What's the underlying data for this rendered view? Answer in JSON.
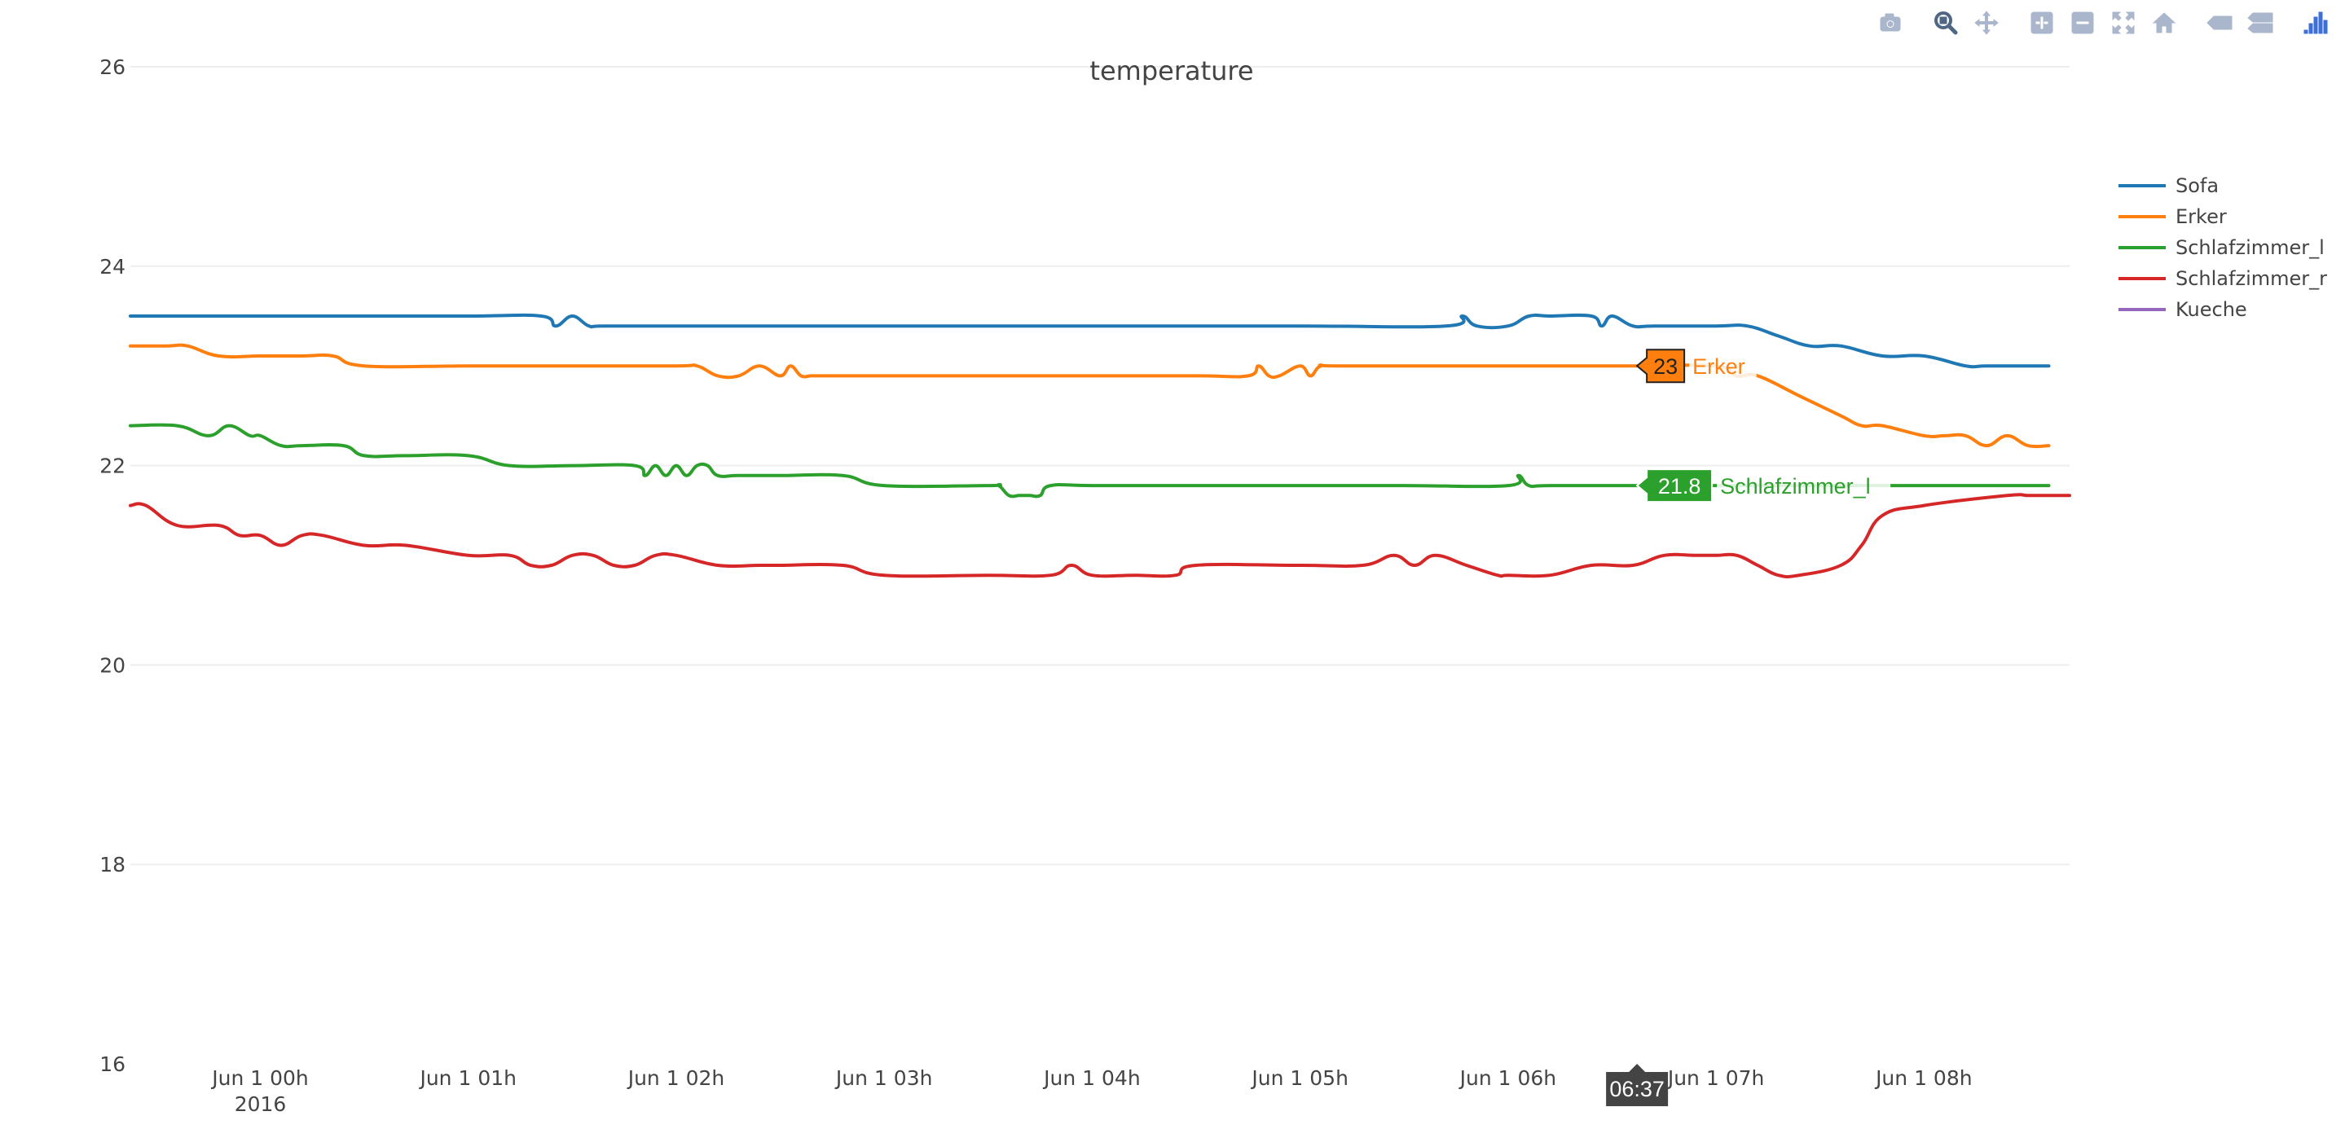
{
  "toolbar": {
    "buttons": [
      {
        "name": "camera-icon",
        "label": "Download plot as a png"
      },
      {
        "name": "zoom-icon",
        "label": "Zoom"
      },
      {
        "name": "pan-icon",
        "label": "Pan"
      },
      {
        "name": "zoom-in-icon",
        "label": "Zoom in"
      },
      {
        "name": "zoom-out-icon",
        "label": "Zoom out"
      },
      {
        "name": "autoscale-icon",
        "label": "Autoscale"
      },
      {
        "name": "home-icon",
        "label": "Reset axes"
      },
      {
        "name": "hover-closest-icon",
        "label": "Show closest data on hover"
      },
      {
        "name": "hover-compare-icon",
        "label": "Compare data on hover"
      },
      {
        "name": "plotly-logo-icon",
        "label": "Produced with Plotly"
      }
    ],
    "icon_color": "#a9b6cc",
    "icon_active_color": "#506784"
  },
  "chart_data": {
    "type": "line",
    "title": "temperature",
    "xlabel": "",
    "ylabel": "",
    "x_range_hours": [
      -0.625,
      8.7
    ],
    "ylim": [
      16,
      26
    ],
    "y_ticks": [
      16,
      18,
      20,
      22,
      24,
      26
    ],
    "x_ticks": [
      {
        "hour": 0,
        "label": "Jun 1 00h",
        "sublabel": "2016"
      },
      {
        "hour": 1,
        "label": "Jun 1 01h",
        "sublabel": ""
      },
      {
        "hour": 2,
        "label": "Jun 1 02h",
        "sublabel": ""
      },
      {
        "hour": 3,
        "label": "Jun 1 03h",
        "sublabel": ""
      },
      {
        "hour": 4,
        "label": "Jun 1 04h",
        "sublabel": ""
      },
      {
        "hour": 5,
        "label": "Jun 1 05h",
        "sublabel": ""
      },
      {
        "hour": 6,
        "label": "Jun 1 06h",
        "sublabel": ""
      },
      {
        "hour": 7,
        "label": "Jun 1 07h",
        "sublabel": ""
      },
      {
        "hour": 8,
        "label": "Jun 1 08h",
        "sublabel": ""
      }
    ],
    "grid": true,
    "legend_position": "top-right",
    "series": [
      {
        "name": "Sofa",
        "color": "#1f77b4",
        "x": [
          -0.625,
          0.5,
          1,
          1.35,
          1.42,
          1.5,
          1.58,
          1.65,
          2,
          3,
          4,
          5,
          5.7,
          5.78,
          5.85,
          6,
          6.1,
          6.2,
          6.4,
          6.45,
          6.5,
          6.6,
          6.7,
          7,
          7.15,
          7.3,
          7.45,
          7.6,
          7.8,
          8,
          8.2,
          8.3,
          8.5,
          8.6
        ],
        "y": [
          23.5,
          23.5,
          23.5,
          23.5,
          23.4,
          23.5,
          23.4,
          23.4,
          23.4,
          23.4,
          23.4,
          23.4,
          23.4,
          23.5,
          23.4,
          23.4,
          23.5,
          23.5,
          23.5,
          23.4,
          23.5,
          23.4,
          23.4,
          23.4,
          23.4,
          23.3,
          23.2,
          23.2,
          23.1,
          23.1,
          23.0,
          23.0,
          23.0,
          23.0
        ]
      },
      {
        "name": "Erker",
        "color": "#ff7f0e",
        "x": [
          -0.625,
          -0.45,
          -0.35,
          -0.2,
          0,
          0.2,
          0.35,
          0.5,
          1,
          1.5,
          2,
          2.1,
          2.2,
          2.3,
          2.4,
          2.5,
          2.55,
          2.6,
          2.65,
          2.7,
          2.8,
          3,
          3.5,
          4,
          4.5,
          4.75,
          4.8,
          4.85,
          4.9,
          5,
          5.05,
          5.1,
          5.2,
          6,
          6.62,
          7,
          7.1,
          7.2,
          7.4,
          7.6,
          7.7,
          7.8,
          8,
          8.1,
          8.2,
          8.3,
          8.4,
          8.5,
          8.6
        ],
        "y": [
          23.2,
          23.2,
          23.2,
          23.1,
          23.1,
          23.1,
          23.1,
          23.0,
          23.0,
          23.0,
          23.0,
          23.0,
          22.9,
          22.9,
          23.0,
          22.9,
          23.0,
          22.9,
          22.9,
          22.9,
          22.9,
          22.9,
          22.9,
          22.9,
          22.9,
          22.9,
          23.0,
          22.9,
          22.9,
          23.0,
          22.9,
          23.0,
          23.0,
          23.0,
          23.0,
          23.0,
          22.9,
          22.9,
          22.7,
          22.5,
          22.4,
          22.4,
          22.3,
          22.3,
          22.3,
          22.2,
          22.3,
          22.2,
          22.2
        ]
      },
      {
        "name": "Schlafzimmer_l",
        "color": "#2ca02c",
        "x": [
          -0.625,
          -0.4,
          -0.25,
          -0.15,
          -0.05,
          0,
          0.1,
          0.2,
          0.4,
          0.5,
          0.7,
          1,
          1.2,
          1.5,
          1.8,
          1.85,
          1.9,
          1.95,
          2,
          2.05,
          2.1,
          2.15,
          2.2,
          2.3,
          2.5,
          2.8,
          3,
          3.5,
          3.55,
          3.6,
          3.65,
          3.7,
          3.75,
          3.8,
          4,
          4.5,
          5,
          5.5,
          6,
          6.05,
          6.1,
          6.2,
          6.62,
          7,
          7.5,
          8,
          8.6
        ],
        "y": [
          22.4,
          22.4,
          22.3,
          22.4,
          22.3,
          22.3,
          22.2,
          22.2,
          22.2,
          22.1,
          22.1,
          22.1,
          22.0,
          22.0,
          22.0,
          21.9,
          22.0,
          21.9,
          22.0,
          21.9,
          22.0,
          22.0,
          21.9,
          21.9,
          21.9,
          21.9,
          21.8,
          21.8,
          21.8,
          21.7,
          21.7,
          21.7,
          21.7,
          21.8,
          21.8,
          21.8,
          21.8,
          21.8,
          21.8,
          21.9,
          21.8,
          21.8,
          21.8,
          21.8,
          21.8,
          21.8,
          21.8
        ]
      },
      {
        "name": "Schlafzimmer_r",
        "color": "#d62728",
        "x": [
          -0.625,
          -0.55,
          -0.4,
          -0.2,
          -0.1,
          0,
          0.1,
          0.2,
          0.3,
          0.5,
          0.7,
          1,
          1.2,
          1.3,
          1.4,
          1.5,
          1.6,
          1.7,
          1.8,
          1.9,
          2,
          2.2,
          2.4,
          2.5,
          2.8,
          3,
          3.5,
          3.8,
          3.9,
          4,
          4.2,
          4.4,
          4.5,
          5,
          5.3,
          5.45,
          5.55,
          5.65,
          5.8,
          5.95,
          6,
          6.2,
          6.4,
          6.6,
          6.75,
          6.9,
          7,
          7.1,
          7.2,
          7.3,
          7.4,
          7.6,
          7.7,
          7.8,
          8,
          8.4,
          8.5,
          8.6,
          8.7
        ],
        "y": [
          21.6,
          21.6,
          21.4,
          21.4,
          21.3,
          21.3,
          21.2,
          21.3,
          21.3,
          21.2,
          21.2,
          21.1,
          21.1,
          21.0,
          21.0,
          21.1,
          21.1,
          21.0,
          21.0,
          21.1,
          21.1,
          21.0,
          21.0,
          21.0,
          21.0,
          20.9,
          20.9,
          20.9,
          21.0,
          20.9,
          20.9,
          20.9,
          21.0,
          21.0,
          21.0,
          21.1,
          21.0,
          21.1,
          21.0,
          20.9,
          20.9,
          20.9,
          21.0,
          21.0,
          21.1,
          21.1,
          21.1,
          21.1,
          21.0,
          20.9,
          20.9,
          21.0,
          21.2,
          21.5,
          21.6,
          21.7,
          21.7,
          21.7,
          21.7
        ]
      },
      {
        "name": "Kueche",
        "color": "#9467bd",
        "x": [],
        "y": []
      }
    ],
    "hover": {
      "x_label": "06:37",
      "hour": 6.62,
      "points": [
        {
          "series": "Erker",
          "value_label": "23",
          "value": 23,
          "color": "#ff7f0e"
        },
        {
          "series": "Schlafzimmer_l",
          "value_label": "21.8",
          "value": 21.8,
          "color": "#2ca02c"
        }
      ]
    }
  }
}
